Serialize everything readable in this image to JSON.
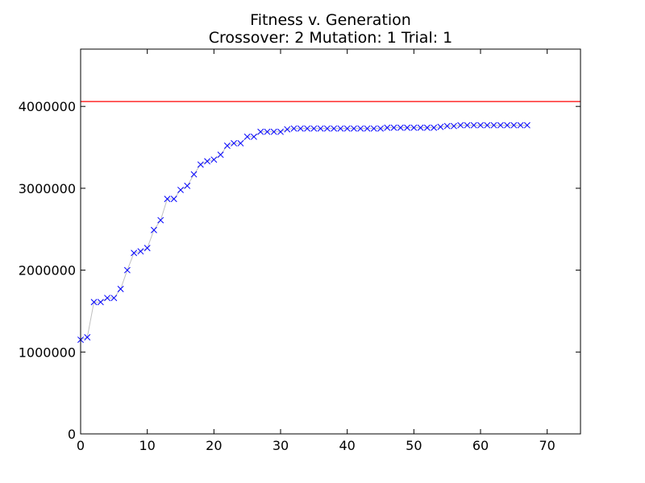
{
  "chart_data": {
    "type": "scatter",
    "title": "Fitness v. Generation",
    "subtitle": "Crossover: 2 Mutation: 1 Trial: 1",
    "xlabel": "",
    "ylabel": "",
    "xlim": [
      0,
      75
    ],
    "ylim": [
      0,
      4700000
    ],
    "x_ticks": [
      0,
      10,
      20,
      30,
      40,
      50,
      60,
      70
    ],
    "y_ticks": [
      0,
      1000000,
      2000000,
      3000000,
      4000000
    ],
    "x_tick_labels": [
      "0",
      "10",
      "20",
      "30",
      "40",
      "50",
      "60",
      "70"
    ],
    "y_tick_labels": [
      "0",
      "1000000",
      "2000000",
      "3000000",
      "4000000"
    ],
    "grid": false,
    "reference_line": {
      "y": 4060000,
      "color": "#ff0000"
    },
    "series": [
      {
        "marker": "x",
        "marker_color": "#0000ff",
        "line_color": "#bfbfbf",
        "x": [
          0,
          1,
          2,
          3,
          4,
          5,
          6,
          7,
          8,
          9,
          10,
          11,
          12,
          13,
          14,
          15,
          16,
          17,
          18,
          19,
          20,
          21,
          22,
          23,
          24,
          25,
          26,
          27,
          28,
          29,
          30,
          31,
          32,
          33,
          34,
          35,
          36,
          37,
          38,
          39,
          40,
          41,
          42,
          43,
          44,
          45,
          46,
          47,
          48,
          49,
          50,
          51,
          52,
          53,
          54,
          55,
          56,
          57,
          58,
          59,
          60,
          61,
          62,
          63,
          64,
          65,
          66,
          67
        ],
        "y": [
          1150000,
          1180000,
          1610000,
          1610000,
          1660000,
          1660000,
          1770000,
          2000000,
          2210000,
          2230000,
          2270000,
          2490000,
          2610000,
          2870000,
          2870000,
          2980000,
          3030000,
          3170000,
          3290000,
          3330000,
          3350000,
          3410000,
          3520000,
          3550000,
          3550000,
          3630000,
          3630000,
          3690000,
          3690000,
          3690000,
          3690000,
          3720000,
          3730000,
          3730000,
          3730000,
          3730000,
          3730000,
          3730000,
          3730000,
          3730000,
          3730000,
          3730000,
          3730000,
          3730000,
          3730000,
          3730000,
          3740000,
          3740000,
          3740000,
          3740000,
          3740000,
          3740000,
          3740000,
          3740000,
          3750000,
          3760000,
          3760000,
          3770000,
          3770000,
          3770000,
          3770000,
          3770000,
          3770000,
          3770000,
          3770000,
          3770000,
          3770000,
          3770000
        ]
      }
    ]
  }
}
